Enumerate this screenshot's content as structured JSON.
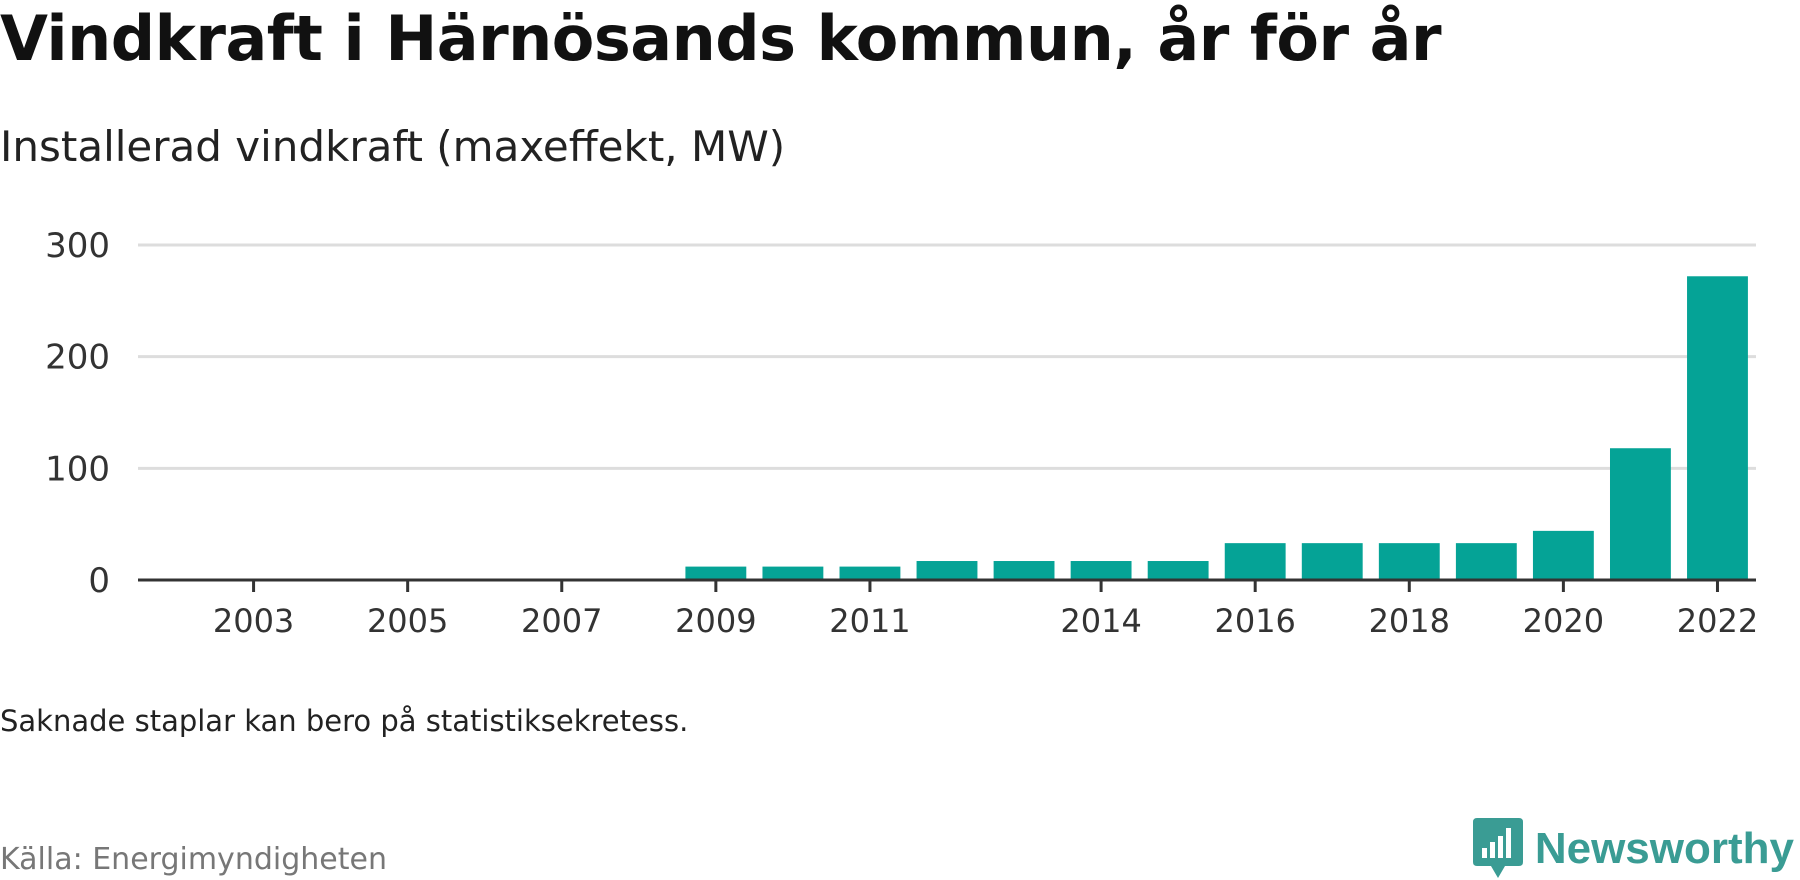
{
  "title": "Vindkraft i Härnösands kommun, år för år",
  "subtitle": "Installerad vindkraft (maxeffekt, MW)",
  "note": "Saknade staplar kan bero på statistiksekretess.",
  "source": "Källa: Energimyndigheten",
  "brand": "Newsworthy",
  "colors": {
    "bar": "#05a396",
    "grid": "#dddddd",
    "axis": "#333333",
    "brand": "#3a9c94"
  },
  "chart_data": {
    "type": "bar",
    "title": "Vindkraft i Härnösands kommun, år för år",
    "subtitle": "Installerad vindkraft (maxeffekt, MW)",
    "xlabel": "",
    "ylabel": "",
    "categories": [
      "2002",
      "2003",
      "2004",
      "2005",
      "2006",
      "2007",
      "2008",
      "2009",
      "2010",
      "2011",
      "2012",
      "2013",
      "2014",
      "2015",
      "2016",
      "2017",
      "2018",
      "2019",
      "2020",
      "2021",
      "2022"
    ],
    "values": [
      null,
      null,
      null,
      null,
      null,
      null,
      null,
      12,
      12,
      12,
      17,
      17,
      17,
      17,
      33,
      33,
      33,
      33,
      44,
      118,
      272
    ],
    "x_tick_labels": [
      "2003",
      "2005",
      "2007",
      "2009",
      "2011",
      "2014",
      "2016",
      "2018",
      "2020",
      "2022"
    ],
    "y_ticks": [
      0,
      100,
      200,
      300
    ],
    "ylim": [
      0,
      300
    ],
    "grid": true,
    "legend": "none"
  }
}
